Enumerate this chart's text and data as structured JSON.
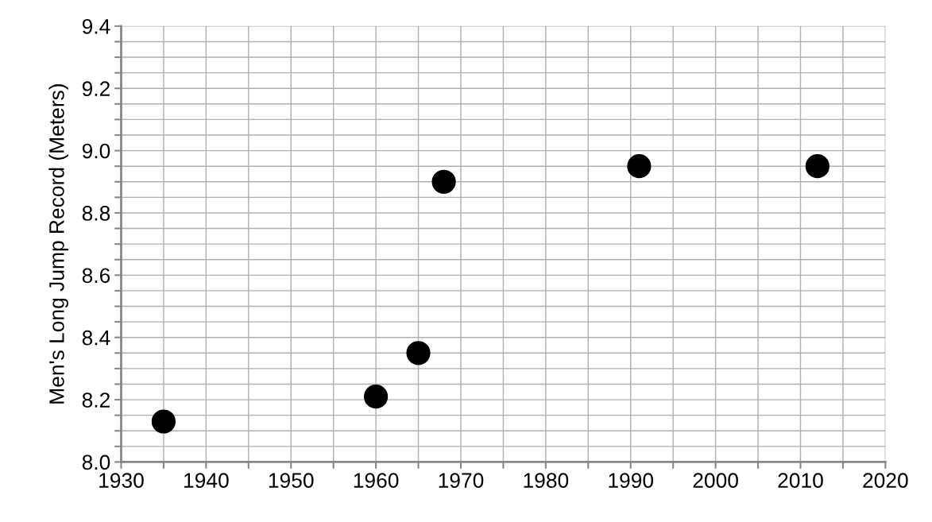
{
  "chart_data": {
    "type": "scatter",
    "ylabel": "Men's Long Jump Record (Meters)",
    "x": [
      1935,
      1960,
      1965,
      1968,
      1991,
      2012
    ],
    "series": [
      {
        "color": "#000000",
        "values": [
          8.13,
          8.21,
          8.35,
          8.9,
          8.95,
          8.95
        ]
      }
    ],
    "marker": "circle",
    "grid": true,
    "legend": false,
    "xlim": [
      1930,
      2020
    ],
    "xticks": [
      1930,
      {
        "value": 1935,
        "label": null
      },
      1940,
      {
        "value": 1945,
        "label": null
      },
      1950,
      {
        "value": 1955,
        "label": null
      },
      1960,
      {
        "value": 1965,
        "label": null
      },
      1970,
      {
        "value": 1975,
        "label": null
      },
      1980,
      {
        "value": 1985,
        "label": null
      },
      1990,
      {
        "value": 1995,
        "label": null
      },
      2000,
      {
        "value": 2005,
        "label": null
      },
      2010,
      {
        "value": 2015,
        "label": null
      },
      2020
    ],
    "ylim": [
      8.0,
      9.4
    ],
    "yticks": [
      {
        "value": 8.0,
        "label": "8.0"
      },
      {
        "value": 8.05,
        "label": null
      },
      {
        "value": 8.1,
        "label": null
      },
      {
        "value": 8.15,
        "label": null
      },
      {
        "value": 8.2,
        "label": "8.2"
      },
      {
        "value": 8.25,
        "label": null
      },
      {
        "value": 8.3,
        "label": null
      },
      {
        "value": 8.35,
        "label": null
      },
      {
        "value": 8.4,
        "label": "8.4"
      },
      {
        "value": 8.45,
        "label": null
      },
      {
        "value": 8.5,
        "label": null
      },
      {
        "value": 8.55,
        "label": null
      },
      {
        "value": 8.6,
        "label": "8.6"
      },
      {
        "value": 8.65,
        "label": null
      },
      {
        "value": 8.7,
        "label": null
      },
      {
        "value": 8.75,
        "label": null
      },
      {
        "value": 8.8,
        "label": "8.8"
      },
      {
        "value": 8.85,
        "label": null
      },
      {
        "value": 8.9,
        "label": null
      },
      {
        "value": 8.95,
        "label": null
      },
      {
        "value": 9.0,
        "label": "9.0"
      },
      {
        "value": 9.05,
        "label": null
      },
      {
        "value": 9.1,
        "label": null
      },
      {
        "value": 9.15,
        "label": null
      },
      {
        "value": 9.2,
        "label": "9.2"
      },
      {
        "value": 9.25,
        "label": null
      },
      {
        "value": 9.3,
        "label": null
      },
      {
        "value": 9.35,
        "label": null
      },
      {
        "value": 9.4,
        "label": "9.4"
      }
    ]
  }
}
